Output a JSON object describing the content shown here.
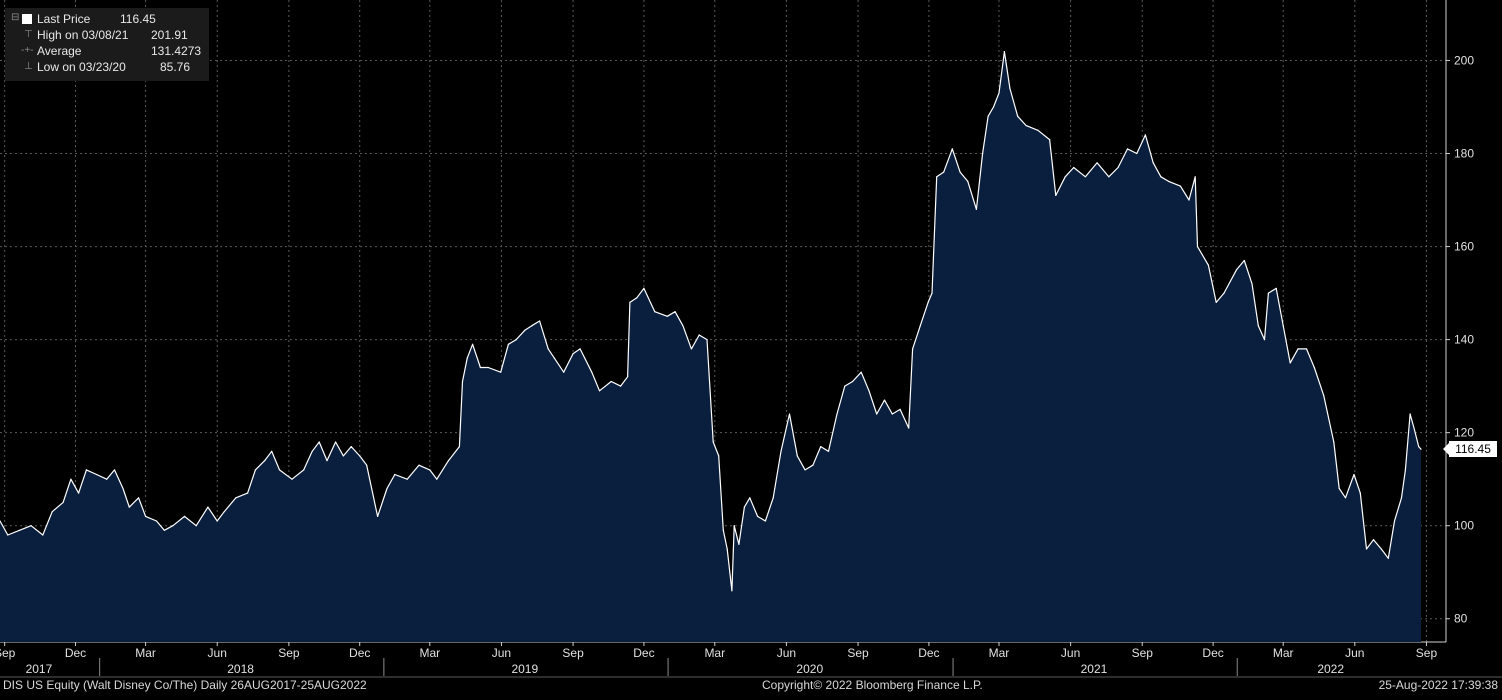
{
  "legend": {
    "last_price_label": "Last Price",
    "last_price_value": "116.45",
    "high_label": "High on 03/08/21",
    "high_value": "201.91",
    "average_label": "Average",
    "average_value": "131.4273",
    "low_label": "Low on 03/23/20",
    "low_value": "85.76"
  },
  "last_value_box": "116.45",
  "footer": {
    "security": "DIS US Equity (Walt Disney Co/The)  Daily 26AUG2017-25AUG2022",
    "copyright": "Copyright© 2022 Bloomberg Finance L.P.",
    "timestamp": "25-Aug-2022 17:39:38"
  },
  "colors": {
    "background": "#000000",
    "area_fill": "#0a1f3d",
    "line": "#ffffff",
    "grid": "#5a5a5a"
  },
  "chart_data": {
    "type": "area",
    "ylim": [
      75,
      213
    ],
    "yticks": [
      80,
      100,
      120,
      140,
      160,
      180,
      200
    ],
    "grid": true,
    "legend_position": "top-left",
    "xlim": [
      "2017-08-26",
      "2022-08-25"
    ],
    "month_ticks": [
      {
        "date": "2017-09-01",
        "label": "Sep"
      },
      {
        "date": "2017-12-01",
        "label": "Dec"
      },
      {
        "date": "2018-03-01",
        "label": "Mar"
      },
      {
        "date": "2018-06-01",
        "label": "Jun"
      },
      {
        "date": "2018-09-01",
        "label": "Sep"
      },
      {
        "date": "2018-12-01",
        "label": "Dec"
      },
      {
        "date": "2019-03-01",
        "label": "Mar"
      },
      {
        "date": "2019-06-01",
        "label": "Jun"
      },
      {
        "date": "2019-09-01",
        "label": "Sep"
      },
      {
        "date": "2019-12-01",
        "label": "Dec"
      },
      {
        "date": "2020-03-01",
        "label": "Mar"
      },
      {
        "date": "2020-06-01",
        "label": "Jun"
      },
      {
        "date": "2020-09-01",
        "label": "Sep"
      },
      {
        "date": "2020-12-01",
        "label": "Dec"
      },
      {
        "date": "2021-03-01",
        "label": "Mar"
      },
      {
        "date": "2021-06-01",
        "label": "Jun"
      },
      {
        "date": "2021-09-01",
        "label": "Sep"
      },
      {
        "date": "2021-12-01",
        "label": "Dec"
      },
      {
        "date": "2022-03-01",
        "label": "Mar"
      },
      {
        "date": "2022-06-01",
        "label": "Jun"
      },
      {
        "date": "2022-09-01",
        "label": "Sep"
      }
    ],
    "year_labels": [
      {
        "year": "2017",
        "center": "2017-10-15"
      },
      {
        "year": "2018",
        "center": "2018-07-01"
      },
      {
        "year": "2019",
        "center": "2019-07-01"
      },
      {
        "year": "2020",
        "center": "2020-07-01"
      },
      {
        "year": "2021",
        "center": "2021-07-01"
      },
      {
        "year": "2022",
        "center": "2022-05-01"
      }
    ],
    "year_separators": [
      "2018-01-01",
      "2019-01-01",
      "2020-01-01",
      "2021-01-01",
      "2022-01-01"
    ],
    "series": [
      {
        "name": "Last Price",
        "points": [
          [
            "2017-08-26",
            101
          ],
          [
            "2017-09-05",
            98
          ],
          [
            "2017-09-20",
            99
          ],
          [
            "2017-10-05",
            100
          ],
          [
            "2017-10-20",
            98
          ],
          [
            "2017-11-01",
            103
          ],
          [
            "2017-11-15",
            105
          ],
          [
            "2017-11-25",
            110
          ],
          [
            "2017-12-05",
            107
          ],
          [
            "2017-12-15",
            112
          ],
          [
            "2017-12-28",
            111
          ],
          [
            "2018-01-10",
            110
          ],
          [
            "2018-01-20",
            112
          ],
          [
            "2018-01-31",
            108
          ],
          [
            "2018-02-08",
            104
          ],
          [
            "2018-02-20",
            106
          ],
          [
            "2018-03-01",
            102
          ],
          [
            "2018-03-15",
            101
          ],
          [
            "2018-03-25",
            99
          ],
          [
            "2018-04-05",
            100
          ],
          [
            "2018-04-20",
            102
          ],
          [
            "2018-05-05",
            100
          ],
          [
            "2018-05-20",
            104
          ],
          [
            "2018-06-01",
            101
          ],
          [
            "2018-06-10",
            103
          ],
          [
            "2018-06-25",
            106
          ],
          [
            "2018-07-10",
            107
          ],
          [
            "2018-07-20",
            112
          ],
          [
            "2018-08-01",
            114
          ],
          [
            "2018-08-10",
            116
          ],
          [
            "2018-08-20",
            112
          ],
          [
            "2018-09-05",
            110
          ],
          [
            "2018-09-20",
            112
          ],
          [
            "2018-10-01",
            116
          ],
          [
            "2018-10-10",
            118
          ],
          [
            "2018-10-20",
            114
          ],
          [
            "2018-10-31",
            118
          ],
          [
            "2018-11-10",
            115
          ],
          [
            "2018-11-20",
            117
          ],
          [
            "2018-12-01",
            115
          ],
          [
            "2018-12-10",
            113
          ],
          [
            "2018-12-24",
            102
          ],
          [
            "2019-01-05",
            108
          ],
          [
            "2019-01-15",
            111
          ],
          [
            "2019-01-31",
            110
          ],
          [
            "2019-02-15",
            113
          ],
          [
            "2019-03-01",
            112
          ],
          [
            "2019-03-10",
            110
          ],
          [
            "2019-03-25",
            114
          ],
          [
            "2019-04-08",
            117
          ],
          [
            "2019-04-12",
            131
          ],
          [
            "2019-04-18",
            136
          ],
          [
            "2019-04-25",
            139
          ],
          [
            "2019-05-05",
            134
          ],
          [
            "2019-05-15",
            134
          ],
          [
            "2019-05-31",
            133
          ],
          [
            "2019-06-10",
            139
          ],
          [
            "2019-06-20",
            140
          ],
          [
            "2019-07-01",
            142
          ],
          [
            "2019-07-10",
            143
          ],
          [
            "2019-07-20",
            144
          ],
          [
            "2019-07-31",
            138
          ],
          [
            "2019-08-08",
            136
          ],
          [
            "2019-08-20",
            133
          ],
          [
            "2019-09-01",
            137
          ],
          [
            "2019-09-10",
            138
          ],
          [
            "2019-09-25",
            133
          ],
          [
            "2019-10-05",
            129
          ],
          [
            "2019-10-20",
            131
          ],
          [
            "2019-11-01",
            130
          ],
          [
            "2019-11-10",
            132
          ],
          [
            "2019-11-13",
            148
          ],
          [
            "2019-11-22",
            149
          ],
          [
            "2019-12-01",
            151
          ],
          [
            "2019-12-15",
            146
          ],
          [
            "2019-12-31",
            145
          ],
          [
            "2020-01-10",
            146
          ],
          [
            "2020-01-20",
            143
          ],
          [
            "2020-01-31",
            138
          ],
          [
            "2020-02-10",
            141
          ],
          [
            "2020-02-20",
            140
          ],
          [
            "2020-02-28",
            118
          ],
          [
            "2020-03-06",
            115
          ],
          [
            "2020-03-12",
            99
          ],
          [
            "2020-03-17",
            95
          ],
          [
            "2020-03-23",
            86
          ],
          [
            "2020-03-26",
            100
          ],
          [
            "2020-04-01",
            96
          ],
          [
            "2020-04-08",
            104
          ],
          [
            "2020-04-15",
            106
          ],
          [
            "2020-04-25",
            102
          ],
          [
            "2020-05-05",
            101
          ],
          [
            "2020-05-15",
            106
          ],
          [
            "2020-05-25",
            116
          ],
          [
            "2020-06-05",
            124
          ],
          [
            "2020-06-15",
            115
          ],
          [
            "2020-06-25",
            112
          ],
          [
            "2020-07-05",
            113
          ],
          [
            "2020-07-15",
            117
          ],
          [
            "2020-07-25",
            116
          ],
          [
            "2020-08-05",
            124
          ],
          [
            "2020-08-15",
            130
          ],
          [
            "2020-08-25",
            131
          ],
          [
            "2020-09-05",
            133
          ],
          [
            "2020-09-15",
            129
          ],
          [
            "2020-09-25",
            124
          ],
          [
            "2020-10-05",
            127
          ],
          [
            "2020-10-15",
            124
          ],
          [
            "2020-10-25",
            125
          ],
          [
            "2020-11-05",
            121
          ],
          [
            "2020-11-10",
            138
          ],
          [
            "2020-11-20",
            143
          ],
          [
            "2020-11-30",
            148
          ],
          [
            "2020-12-05",
            150
          ],
          [
            "2020-12-11",
            175
          ],
          [
            "2020-12-20",
            176
          ],
          [
            "2020-12-31",
            181
          ],
          [
            "2021-01-10",
            176
          ],
          [
            "2021-01-20",
            174
          ],
          [
            "2021-01-31",
            168
          ],
          [
            "2021-02-08",
            180
          ],
          [
            "2021-02-15",
            188
          ],
          [
            "2021-02-22",
            190
          ],
          [
            "2021-03-01",
            193
          ],
          [
            "2021-03-08",
            201.91
          ],
          [
            "2021-03-15",
            194
          ],
          [
            "2021-03-25",
            188
          ],
          [
            "2021-04-05",
            186
          ],
          [
            "2021-04-20",
            185
          ],
          [
            "2021-05-05",
            183
          ],
          [
            "2021-05-13",
            171
          ],
          [
            "2021-05-25",
            175
          ],
          [
            "2021-06-05",
            177
          ],
          [
            "2021-06-20",
            175
          ],
          [
            "2021-07-05",
            178
          ],
          [
            "2021-07-20",
            175
          ],
          [
            "2021-08-01",
            177
          ],
          [
            "2021-08-13",
            181
          ],
          [
            "2021-08-25",
            180
          ],
          [
            "2021-09-05",
            184
          ],
          [
            "2021-09-15",
            178
          ],
          [
            "2021-09-25",
            175
          ],
          [
            "2021-10-05",
            174
          ],
          [
            "2021-10-20",
            173
          ],
          [
            "2021-10-31",
            170
          ],
          [
            "2021-11-08",
            175
          ],
          [
            "2021-11-11",
            160
          ],
          [
            "2021-11-25",
            156
          ],
          [
            "2021-12-05",
            148
          ],
          [
            "2021-12-15",
            150
          ],
          [
            "2021-12-31",
            155
          ],
          [
            "2022-01-10",
            157
          ],
          [
            "2022-01-20",
            152
          ],
          [
            "2022-01-28",
            143
          ],
          [
            "2022-02-05",
            140
          ],
          [
            "2022-02-10",
            150
          ],
          [
            "2022-02-20",
            151
          ],
          [
            "2022-03-01",
            143
          ],
          [
            "2022-03-10",
            135
          ],
          [
            "2022-03-20",
            138
          ],
          [
            "2022-03-31",
            138
          ],
          [
            "2022-04-10",
            134
          ],
          [
            "2022-04-22",
            128
          ],
          [
            "2022-05-05",
            118
          ],
          [
            "2022-05-12",
            108
          ],
          [
            "2022-05-20",
            106
          ],
          [
            "2022-05-31",
            111
          ],
          [
            "2022-06-08",
            107
          ],
          [
            "2022-06-16",
            95
          ],
          [
            "2022-06-25",
            97
          ],
          [
            "2022-07-05",
            95
          ],
          [
            "2022-07-14",
            93
          ],
          [
            "2022-07-22",
            101
          ],
          [
            "2022-07-31",
            106
          ],
          [
            "2022-08-05",
            112
          ],
          [
            "2022-08-11",
            124
          ],
          [
            "2022-08-16",
            121
          ],
          [
            "2022-08-22",
            117
          ],
          [
            "2022-08-25",
            116.45
          ]
        ]
      }
    ]
  }
}
